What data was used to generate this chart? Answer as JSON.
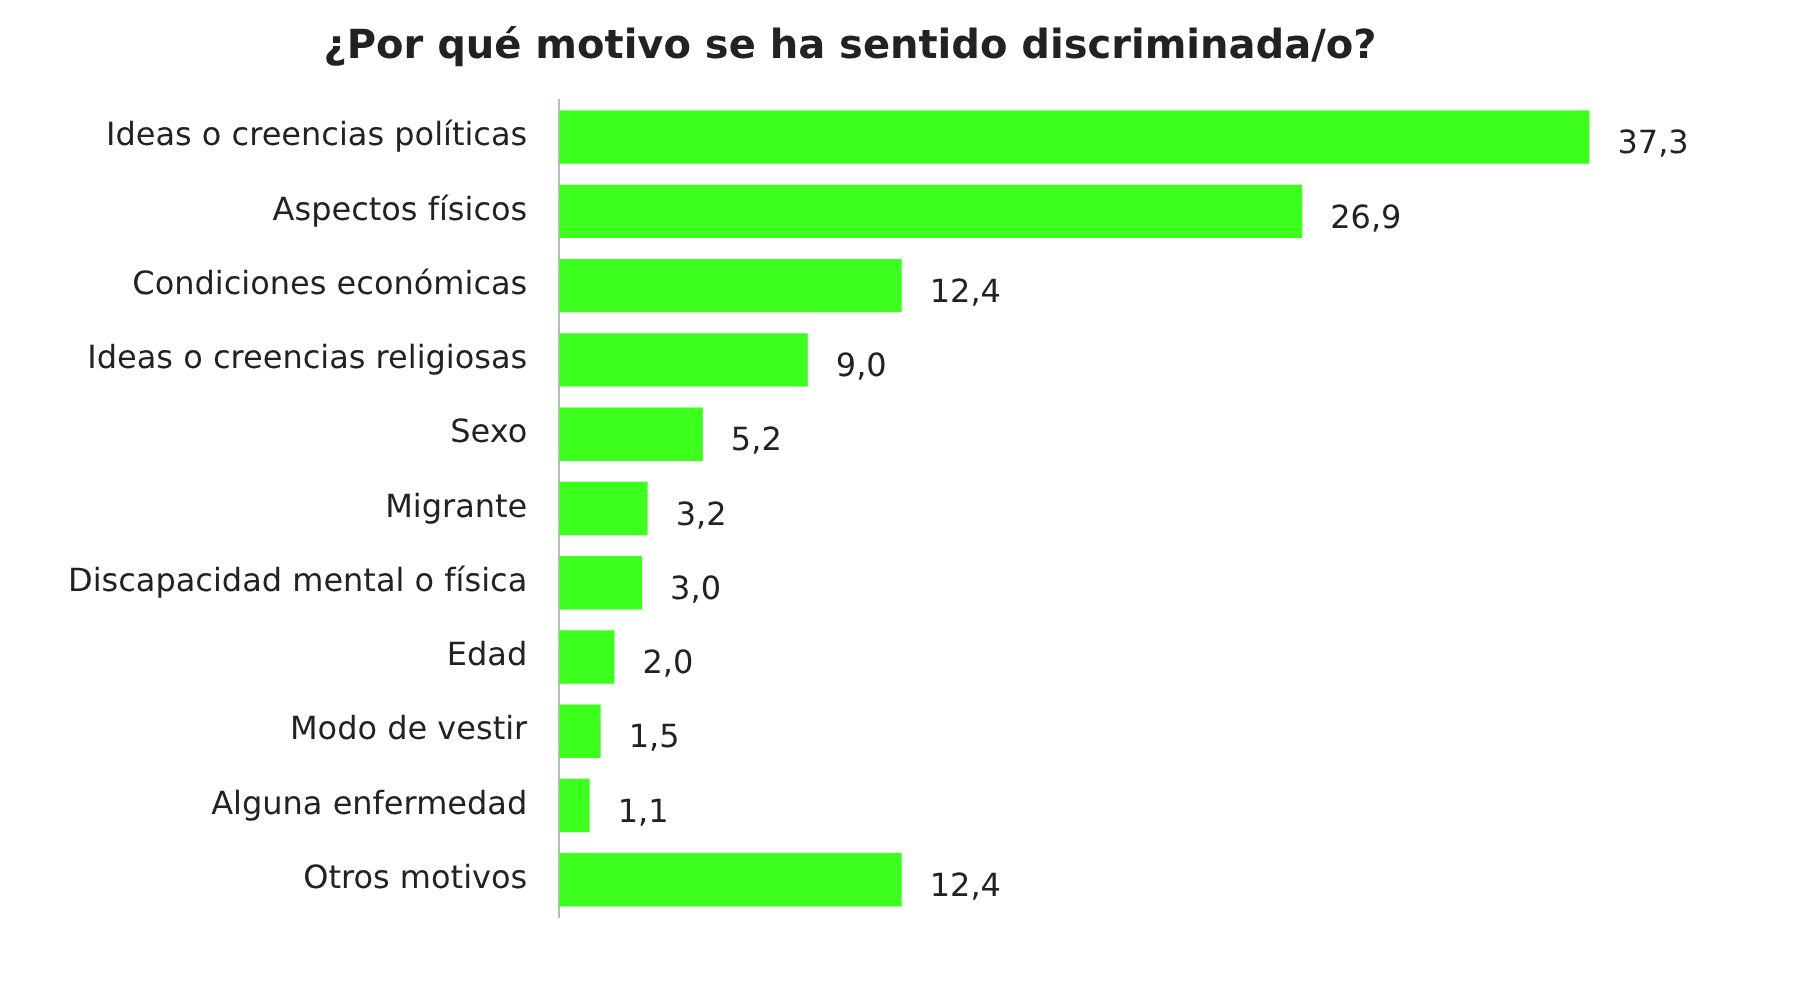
{
  "chart_data": {
    "type": "bar",
    "orientation": "horizontal",
    "title": "¿Por qué motivo se ha sentido discriminada/o?",
    "categories": [
      "Ideas o creencias políticas",
      "Aspectos físicos",
      "Condiciones económicas",
      "Ideas o creencias religiosas",
      "Sexo",
      "Migrante",
      "Discapacidad mental o física",
      "Edad",
      "Modo de vestir",
      "Alguna enfermedad",
      "Otros motivos"
    ],
    "values": [
      37.3,
      26.9,
      12.4,
      9.0,
      5.2,
      3.2,
      3.0,
      2.0,
      1.5,
      1.1,
      12.4
    ],
    "value_labels": [
      "37,3",
      "26,9",
      "12,4",
      "9,0",
      "5,2",
      "3,2",
      "3,0",
      "2,0",
      "1,5",
      "1,1",
      "12,4"
    ],
    "color": "#3cff1e",
    "grid": false,
    "legend": false
  }
}
